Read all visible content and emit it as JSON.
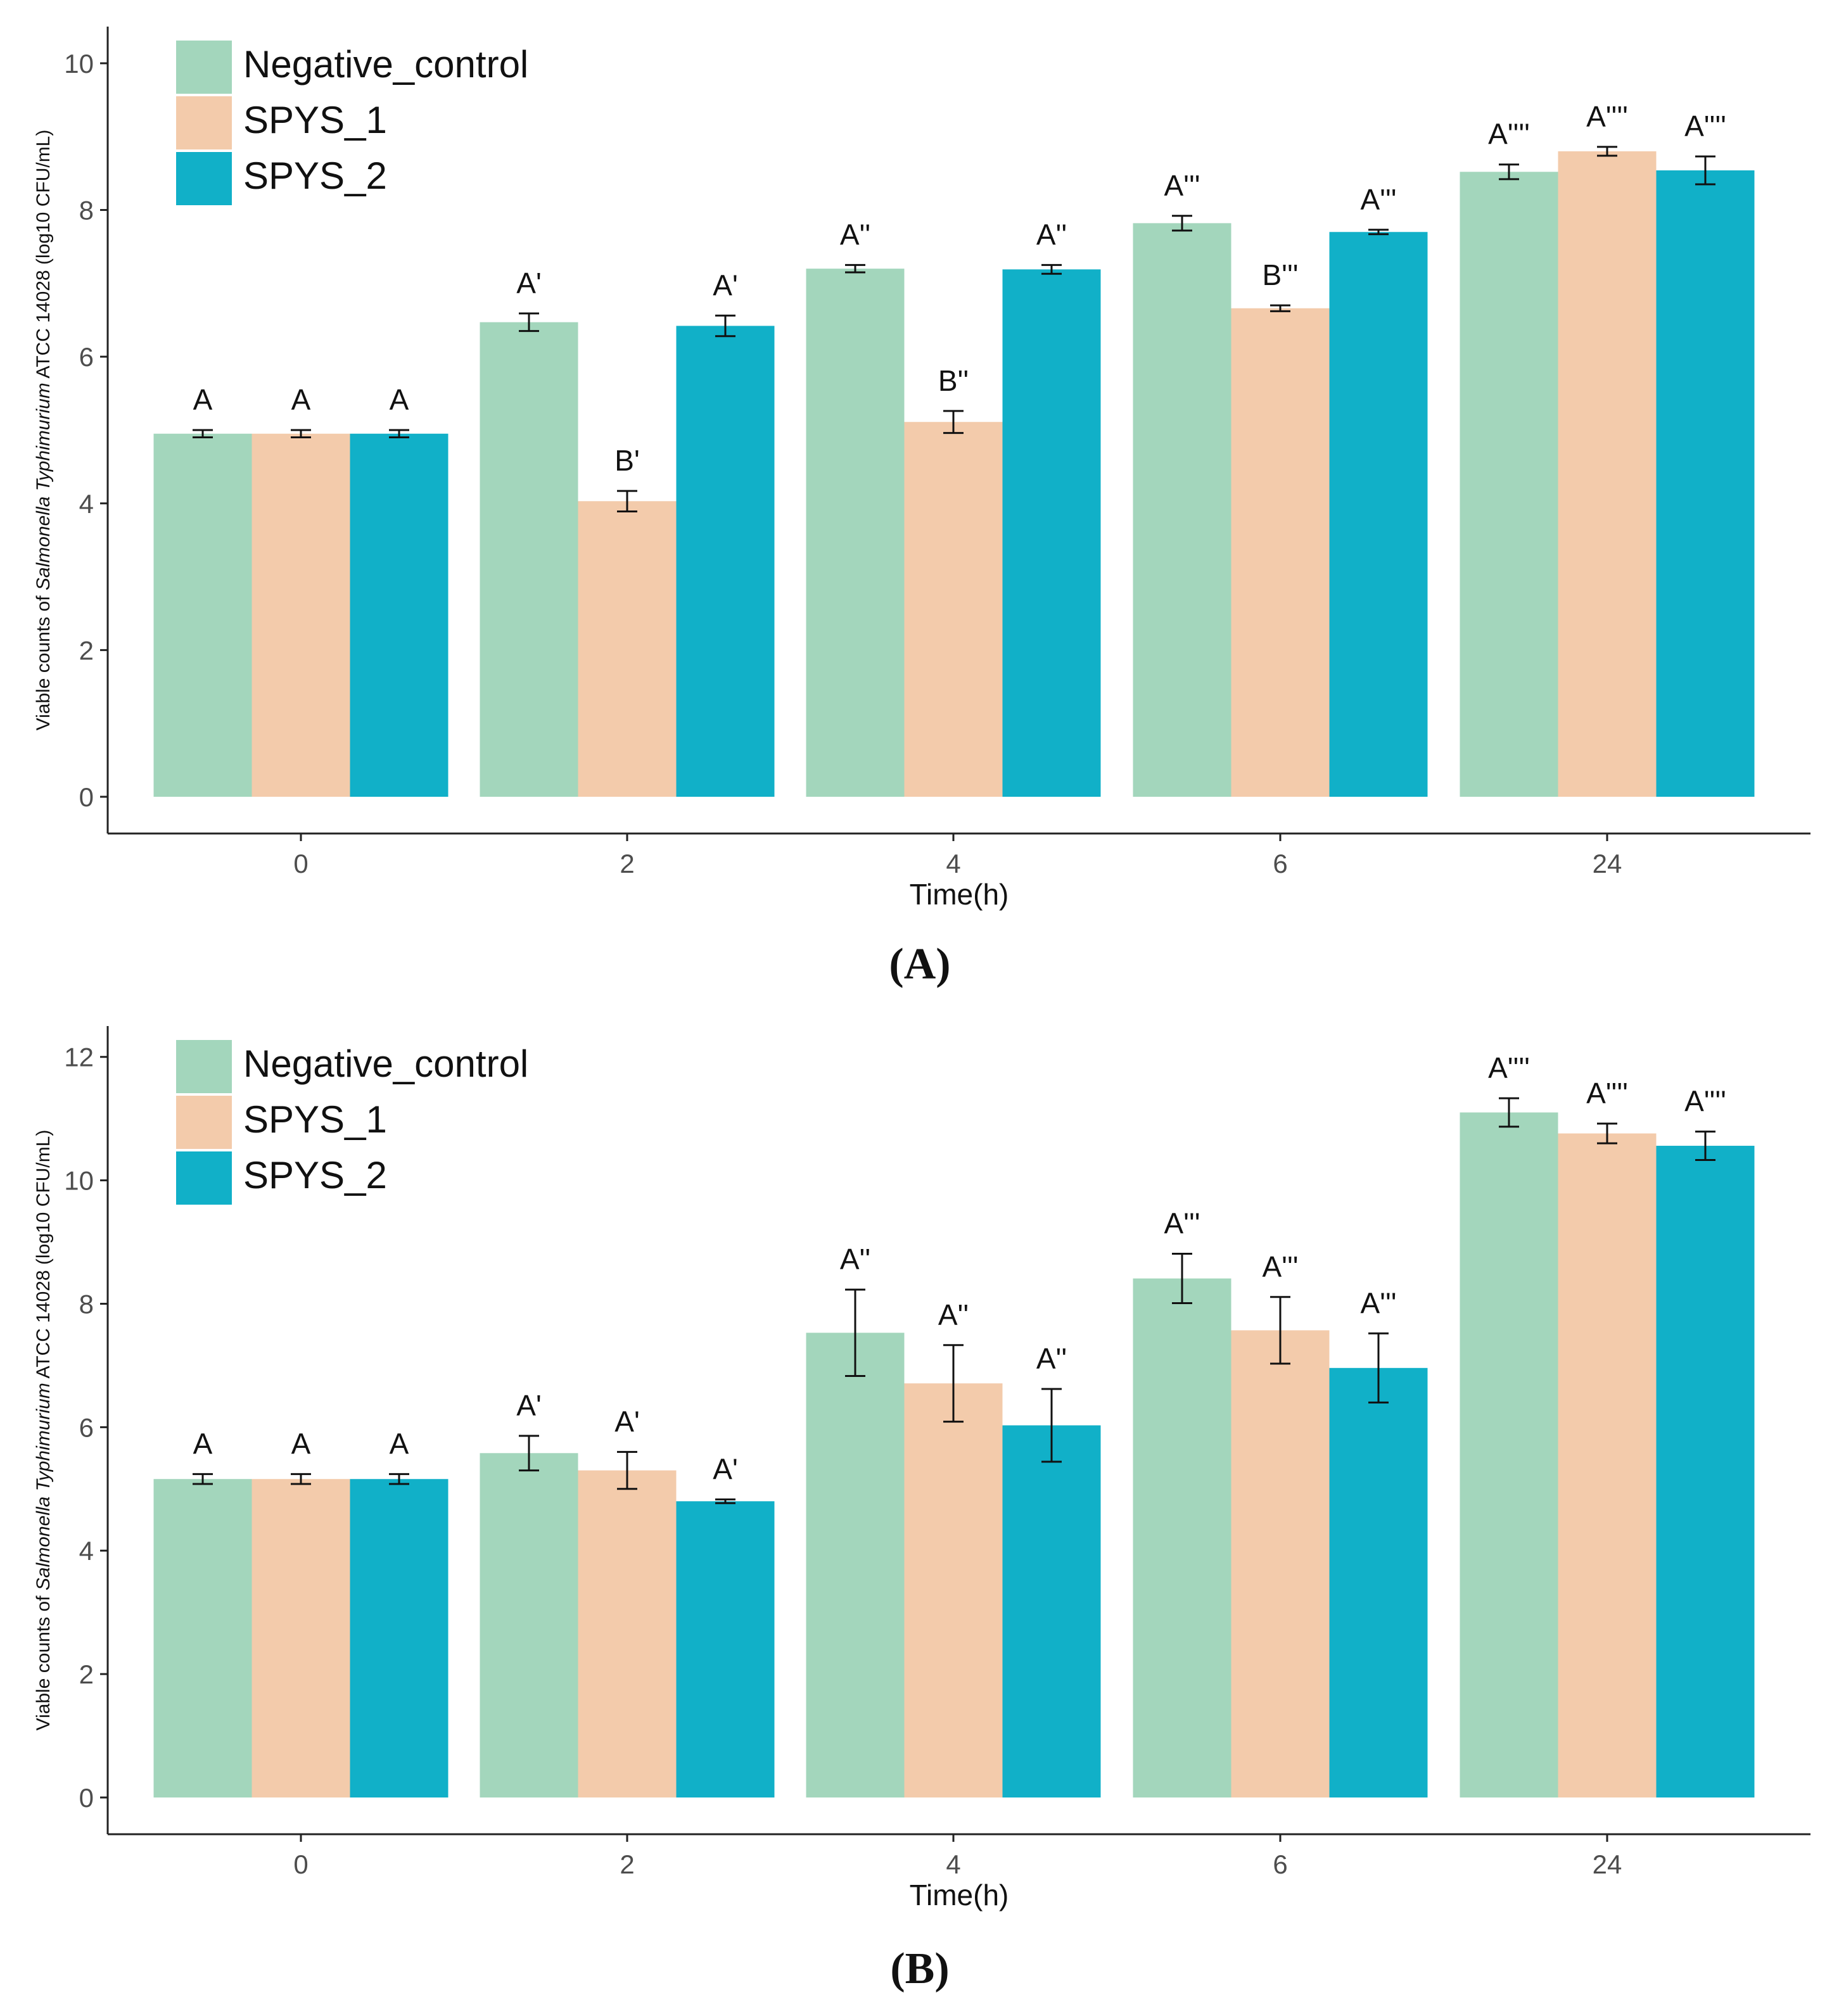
{
  "figure": {
    "panel_labels": [
      "(A)",
      "(B)"
    ],
    "series_colors": {
      "Negative_control": "#a3d6bc",
      "SPYS_1": "#f3cbab",
      "SPYS_2": "#11b0c8"
    }
  },
  "chart_data": [
    {
      "type": "bar",
      "panel": "(A)",
      "title": "",
      "xlabel": "Time(h)",
      "ylabel_prefix": "Viable counts of ",
      "ylabel_italic": "Salmonella Typhimurium",
      "ylabel_suffix": " ATCC 14028 (log10 CFU/mL)",
      "categories": [
        "0",
        "2",
        "4",
        "6",
        "24"
      ],
      "ylim": [
        0,
        10.5
      ],
      "yticks": [
        0,
        2,
        4,
        6,
        8,
        10
      ],
      "grid": false,
      "legend_position": "top-left",
      "series": [
        {
          "name": "Negative_control",
          "color": "#a3d6bc",
          "values": [
            4.95,
            6.47,
            7.2,
            7.82,
            8.52
          ],
          "errors": [
            0.05,
            0.12,
            0.05,
            0.1,
            0.1
          ],
          "labels": [
            "A",
            "A'",
            "A''",
            "A'''",
            "A''''"
          ]
        },
        {
          "name": "SPYS_1",
          "color": "#f3cbab",
          "values": [
            4.95,
            4.03,
            5.11,
            6.66,
            8.8
          ],
          "errors": [
            0.05,
            0.14,
            0.15,
            0.04,
            0.06
          ],
          "labels": [
            "A",
            "B'",
            "B''",
            "B'''",
            "A''''"
          ]
        },
        {
          "name": "SPYS_2",
          "color": "#11b0c8",
          "values": [
            4.95,
            6.42,
            7.19,
            7.7,
            8.54
          ],
          "errors": [
            0.05,
            0.14,
            0.06,
            0.03,
            0.19
          ],
          "labels": [
            "A",
            "A'",
            "A''",
            "A'''",
            "A''''"
          ]
        }
      ]
    },
    {
      "type": "bar",
      "panel": "(B)",
      "title": "",
      "xlabel": "Time(h)",
      "ylabel_prefix": "Viable counts of ",
      "ylabel_italic": "Salmonella Typhimurium",
      "ylabel_suffix": " ATCC 14028 (log10 CFU/mL)",
      "categories": [
        "0",
        "2",
        "4",
        "6",
        "24"
      ],
      "ylim": [
        0,
        12.5
      ],
      "yticks": [
        0,
        2,
        4,
        6,
        8,
        10,
        12
      ],
      "grid": false,
      "legend_position": "top-left",
      "series": [
        {
          "name": "Negative_control",
          "color": "#a3d6bc",
          "values": [
            5.16,
            5.58,
            7.53,
            8.41,
            11.1
          ],
          "errors": [
            0.08,
            0.28,
            0.7,
            0.4,
            0.23
          ],
          "labels": [
            "A",
            "A'",
            "A''",
            "A'''",
            "A''''"
          ]
        },
        {
          "name": "SPYS_1",
          "color": "#f3cbab",
          "values": [
            5.16,
            5.3,
            6.71,
            7.57,
            10.76
          ],
          "errors": [
            0.08,
            0.3,
            0.62,
            0.54,
            0.16
          ],
          "labels": [
            "A",
            "A'",
            "A''",
            "A'''",
            "A''''"
          ]
        },
        {
          "name": "SPYS_2",
          "color": "#11b0c8",
          "values": [
            5.16,
            4.8,
            6.03,
            6.96,
            10.56
          ],
          "errors": [
            0.08,
            0.03,
            0.59,
            0.56,
            0.23
          ],
          "labels": [
            "A",
            "A'",
            "A''",
            "A'''",
            "A''''"
          ]
        }
      ]
    }
  ]
}
